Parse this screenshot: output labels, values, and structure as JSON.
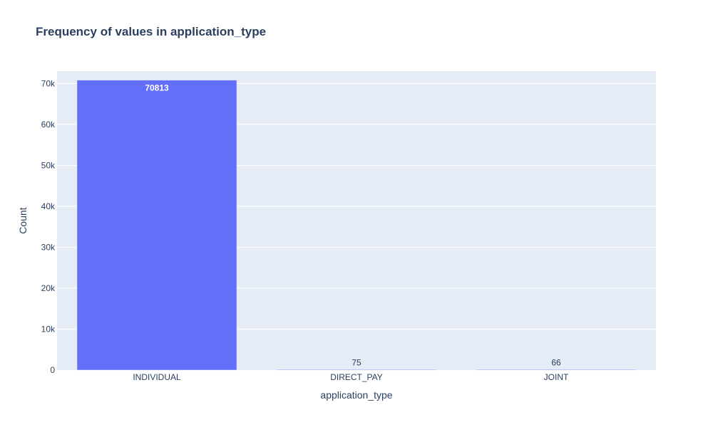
{
  "chart_data": {
    "type": "bar",
    "title": "Frequency of values in application_type",
    "xlabel": "application_type",
    "ylabel": "Count",
    "categories": [
      "INDIVIDUAL",
      "DIRECT_PAY",
      "JOINT"
    ],
    "values": [
      70813,
      75,
      66
    ],
    "data_labels": [
      "70813",
      "75",
      "66"
    ],
    "ylim": [
      0,
      73000
    ],
    "yticks": [
      0,
      10000,
      20000,
      30000,
      40000,
      50000,
      60000,
      70000
    ],
    "ytick_labels": [
      "0",
      "10k",
      "20k",
      "30k",
      "40k",
      "50k",
      "60k",
      "70k"
    ],
    "grid": true,
    "legend": false,
    "colors": {
      "bar": "#636efa",
      "plot_background": "#e5ecf6",
      "gridline": "#ffffff",
      "text": "#2a3f5f"
    }
  }
}
